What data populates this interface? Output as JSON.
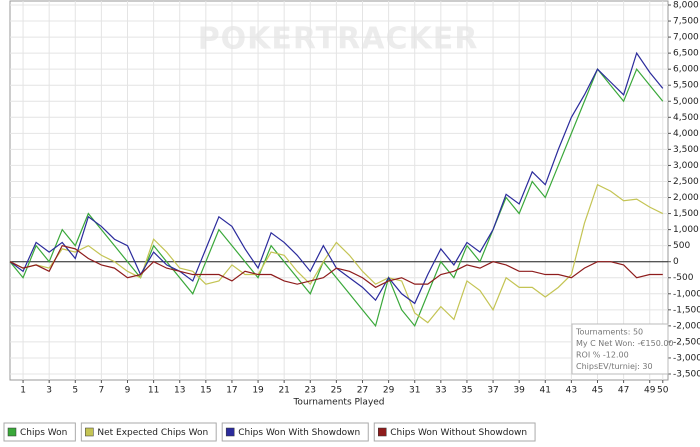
{
  "chart_data": {
    "type": "line",
    "watermark": "POKERTRACKER",
    "xlabel": "Tournaments Played",
    "x": [
      0,
      1,
      2,
      3,
      4,
      5,
      6,
      7,
      8,
      9,
      10,
      11,
      12,
      13,
      14,
      15,
      16,
      17,
      18,
      19,
      20,
      21,
      22,
      23,
      24,
      25,
      26,
      27,
      28,
      29,
      30,
      31,
      32,
      33,
      34,
      35,
      36,
      37,
      38,
      39,
      40,
      41,
      42,
      43,
      44,
      45,
      46,
      47,
      48,
      49,
      50
    ],
    "xlim": [
      0,
      50.4
    ],
    "xticks": [
      1,
      3,
      5,
      7,
      9,
      11,
      13,
      15,
      17,
      19,
      21,
      23,
      25,
      27,
      29,
      31,
      33,
      35,
      37,
      39,
      41,
      43,
      45,
      47,
      49,
      50
    ],
    "ylim": [
      -3500,
      8000
    ],
    "yticks": [
      -3500,
      -3000,
      -2500,
      -2000,
      -1500,
      -1000,
      -500,
      0,
      500,
      1000,
      1500,
      2000,
      2500,
      3000,
      3500,
      4000,
      4500,
      5000,
      5500,
      6000,
      6500,
      7000,
      7500,
      8000
    ],
    "ytick_labels": null,
    "grid": true,
    "series": [
      {
        "name": "Chips Won",
        "color": "#3aa83a",
        "values": [
          0,
          -500,
          500,
          0,
          1000,
          500,
          1500,
          1000,
          500,
          0,
          -500,
          500,
          0,
          -500,
          -1000,
          0,
          1000,
          500,
          0,
          -500,
          500,
          0,
          -500,
          -1000,
          0,
          -500,
          -1000,
          -1500,
          -2000,
          -500,
          -1500,
          -2000,
          -1000,
          0,
          -500,
          500,
          0,
          1000,
          2000,
          1500,
          2500,
          2000,
          3000,
          4000,
          5000,
          6000,
          5500,
          5000,
          6000,
          5500,
          5000
        ]
      },
      {
        "name": "Net Expected Chips Won",
        "color": "#c4c454",
        "values": [
          0,
          -200,
          -100,
          -200,
          400,
          300,
          500,
          200,
          0,
          -300,
          -500,
          700,
          300,
          -200,
          -300,
          -700,
          -600,
          -100,
          -400,
          -400,
          300,
          200,
          -300,
          -700,
          0,
          600,
          200,
          -300,
          -700,
          -500,
          -600,
          -1600,
          -1900,
          -1400,
          -1800,
          -600,
          -900,
          -1500,
          -500,
          -800,
          -800,
          -1100,
          -800,
          -400,
          1200,
          2400,
          2200,
          1900,
          1950,
          1700,
          1500
        ]
      },
      {
        "name": "Chips Won With Showdown",
        "color": "#2b2b9c",
        "values": [
          0,
          -300,
          600,
          300,
          600,
          100,
          1400,
          1100,
          700,
          500,
          -400,
          300,
          -100,
          -300,
          -600,
          400,
          1400,
          1100,
          400,
          -200,
          900,
          600,
          200,
          -300,
          500,
          -200,
          -500,
          -800,
          -1200,
          -500,
          -1000,
          -1300,
          -400,
          400,
          -100,
          600,
          300,
          1000,
          2100,
          1800,
          2800,
          2400,
          3500,
          4500,
          5200,
          6000,
          5600,
          5200,
          6500,
          5900,
          5400
        ]
      },
      {
        "name": "Chips Won Without Showdown",
        "color": "#8e1c1c",
        "values": [
          0,
          -200,
          -100,
          -300,
          500,
          400,
          100,
          -100,
          -200,
          -500,
          -400,
          0,
          -200,
          -300,
          -400,
          -400,
          -400,
          -600,
          -300,
          -400,
          -400,
          -600,
          -700,
          -600,
          -500,
          -200,
          -300,
          -500,
          -800,
          -600,
          -500,
          -700,
          -700,
          -400,
          -300,
          -100,
          -200,
          0,
          -100,
          -300,
          -300,
          -400,
          -400,
          -500,
          -200,
          0,
          0,
          -100,
          -500,
          -400,
          -400
        ]
      }
    ],
    "annotations": [
      "Tournaments: 50",
      "My C Net Won: -€150.00",
      "ROI % -12.00",
      "ChipsEV/turniej: 30"
    ]
  }
}
